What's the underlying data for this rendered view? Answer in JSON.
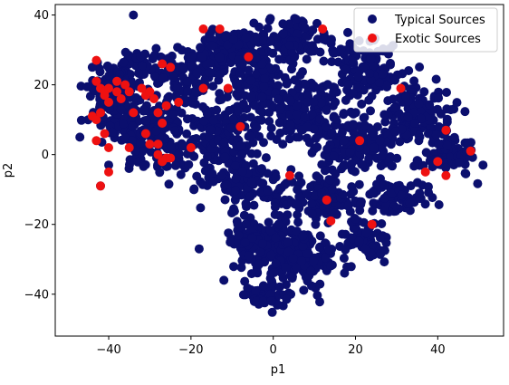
{
  "chart_data": {
    "type": "scatter",
    "xlabel": "p1",
    "ylabel": "p2",
    "xlim": [
      -53,
      56
    ],
    "ylim": [
      -52,
      43
    ],
    "xticks": [
      -40,
      -20,
      0,
      20,
      40
    ],
    "yticks": [
      -40,
      -20,
      0,
      20,
      40
    ],
    "legend_position": "top-right",
    "series": [
      {
        "name": "Typical Sources",
        "color": "#0b0f6e",
        "clusters": [
          {
            "center": [
              -38,
              15
            ],
            "spread": [
              6,
              9
            ],
            "count": 170
          },
          {
            "center": [
              -28,
              5
            ],
            "spread": [
              8,
              10
            ],
            "count": 150
          },
          {
            "center": [
              -20,
              22
            ],
            "spread": [
              8,
              8
            ],
            "count": 110
          },
          {
            "center": [
              -32,
              25
            ],
            "spread": [
              6,
              5
            ],
            "count": 60
          },
          {
            "center": [
              -10,
              30
            ],
            "spread": [
              7,
              6
            ],
            "count": 100
          },
          {
            "center": [
              -3,
              20
            ],
            "spread": [
              9,
              9
            ],
            "count": 140
          },
          {
            "center": [
              5,
              33
            ],
            "spread": [
              8,
              5
            ],
            "count": 110
          },
          {
            "center": [
              -12,
              5
            ],
            "spread": [
              9,
              7
            ],
            "count": 120
          },
          {
            "center": [
              8,
              12
            ],
            "spread": [
              9,
              8
            ],
            "count": 140
          },
          {
            "center": [
              22,
              25
            ],
            "spread": [
              9,
              9
            ],
            "count": 130
          },
          {
            "center": [
              35,
              12
            ],
            "spread": [
              8,
              8
            ],
            "count": 120
          },
          {
            "center": [
              20,
              3
            ],
            "spread": [
              10,
              7
            ],
            "count": 140
          },
          {
            "center": [
              42,
              0
            ],
            "spread": [
              6,
              5
            ],
            "count": 80
          },
          {
            "center": [
              -8,
              -8
            ],
            "spread": [
              9,
              6
            ],
            "count": 110
          },
          {
            "center": [
              12,
              -12
            ],
            "spread": [
              9,
              5
            ],
            "count": 110
          },
          {
            "center": [
              30,
              -12
            ],
            "spread": [
              8,
              5
            ],
            "count": 80
          },
          {
            "center": [
              -2,
              -25
            ],
            "spread": [
              8,
              8
            ],
            "count": 160
          },
          {
            "center": [
              8,
              -30
            ],
            "spread": [
              7,
              8
            ],
            "count": 130
          },
          {
            "center": [
              -2,
              -40
            ],
            "spread": [
              4,
              4
            ],
            "count": 60
          },
          {
            "center": [
              22,
              -25
            ],
            "spread": [
              6,
              6
            ],
            "count": 70
          }
        ],
        "extra_points": [
          [
            -34,
            40
          ],
          [
            -44,
            25
          ],
          [
            -42,
            -9
          ],
          [
            -18,
            -27
          ],
          [
            -12,
            -36
          ],
          [
            51,
            -3
          ],
          [
            47,
            1
          ],
          [
            -47,
            5
          ],
          [
            -40,
            -3
          ]
        ]
      },
      {
        "name": "Exotic Sources",
        "color": "#ee1111",
        "points": [
          [
            -43,
            27
          ],
          [
            -43,
            21
          ],
          [
            -42,
            19
          ],
          [
            -41,
            18
          ],
          [
            -40,
            19
          ],
          [
            -41,
            17
          ],
          [
            -40,
            15
          ],
          [
            -38,
            18
          ],
          [
            -38,
            21
          ],
          [
            -37,
            16
          ],
          [
            -36,
            20
          ],
          [
            -35,
            18
          ],
          [
            -34,
            12
          ],
          [
            -32,
            19
          ],
          [
            -31,
            17
          ],
          [
            -30,
            18
          ],
          [
            -29,
            16
          ],
          [
            -28,
            12
          ],
          [
            -27,
            9
          ],
          [
            -26,
            14
          ],
          [
            -25,
            25
          ],
          [
            -27,
            26
          ],
          [
            -23,
            15
          ],
          [
            -17,
            19
          ],
          [
            -44,
            11
          ],
          [
            -43,
            10
          ],
          [
            -42,
            12
          ],
          [
            -41,
            6
          ],
          [
            -40,
            2
          ],
          [
            -43,
            4
          ],
          [
            -40,
            -5
          ],
          [
            -42,
            -9
          ],
          [
            -35,
            2
          ],
          [
            -31,
            6
          ],
          [
            -30,
            3
          ],
          [
            -28,
            3
          ],
          [
            -28,
            0
          ],
          [
            -26,
            -1
          ],
          [
            -25,
            -1
          ],
          [
            -27,
            -2
          ],
          [
            -20,
            2
          ],
          [
            -13,
            36
          ],
          [
            -17,
            36
          ],
          [
            -6,
            28
          ],
          [
            -8,
            8
          ],
          [
            -11,
            19
          ],
          [
            12,
            36
          ],
          [
            4,
            -6
          ],
          [
            13,
            -13
          ],
          [
            14,
            -19
          ],
          [
            21,
            4
          ],
          [
            24,
            -20
          ],
          [
            31,
            19
          ],
          [
            37,
            -5
          ],
          [
            40,
            -2
          ],
          [
            42,
            7
          ],
          [
            42,
            -6
          ],
          [
            48,
            1
          ]
        ]
      }
    ]
  }
}
